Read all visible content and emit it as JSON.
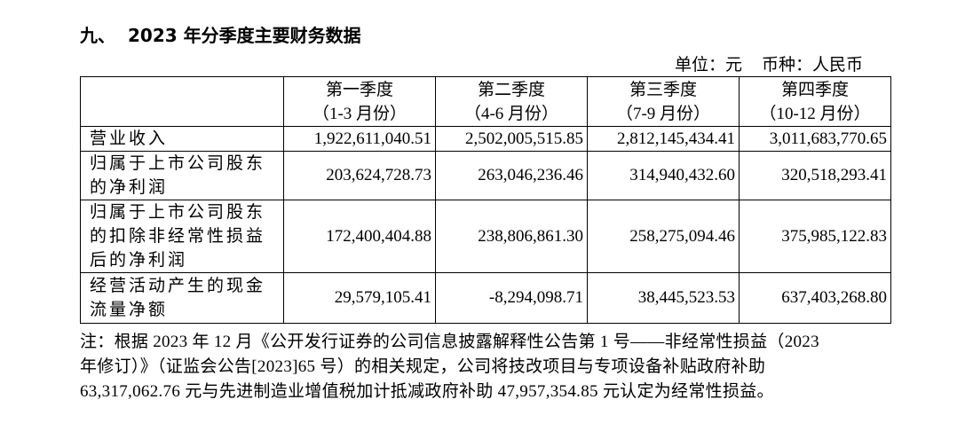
{
  "heading": {
    "number": "九、",
    "title": "2023 年分季度主要财务数据"
  },
  "unit": {
    "unit_label": "单位：元",
    "currency_label": "币种：人民币"
  },
  "table": {
    "columns": [
      {
        "name": "第一季度",
        "months": "（1-3 月份）"
      },
      {
        "name": "第二季度",
        "months": "（4-6 月份）"
      },
      {
        "name": "第三季度",
        "months": "（7-9 月份）"
      },
      {
        "name": "第四季度",
        "months": "（10-12 月份）"
      }
    ],
    "rows": [
      {
        "label": "营业收入",
        "values": [
          "1,922,611,040.51",
          "2,502,005,515.85",
          "2,812,145,434.41",
          "3,011,683,770.65"
        ]
      },
      {
        "label": "归属于上市公司股东的净利润",
        "values": [
          "203,624,728.73",
          "263,046,236.46",
          "314,940,432.60",
          "320,518,293.41"
        ]
      },
      {
        "label": "归属于上市公司股东的扣除非经常性损益后的净利润",
        "values": [
          "172,400,404.88",
          "238,806,861.30",
          "258,275,094.46",
          "375,985,122.83"
        ]
      },
      {
        "label": "经营活动产生的现金流量净额",
        "values": [
          "29,579,105.41",
          "-8,294,098.71",
          "38,445,523.53",
          "637,403,268.80"
        ]
      }
    ]
  },
  "note": {
    "lines": [
      "注：根据 2023 年 12 月《公开发行证券的公司信息披露解释性公告第 1 号——非经常性损益（2023",
      "年修订）》（证监会公告[2023]65 号）的相关规定，公司将技改项目与专项设备补贴政府补助",
      "63,317,062.76 元与先进制造业增值税加计抵减政府补助 47,957,354.85 元认定为经常性损益。"
    ]
  }
}
